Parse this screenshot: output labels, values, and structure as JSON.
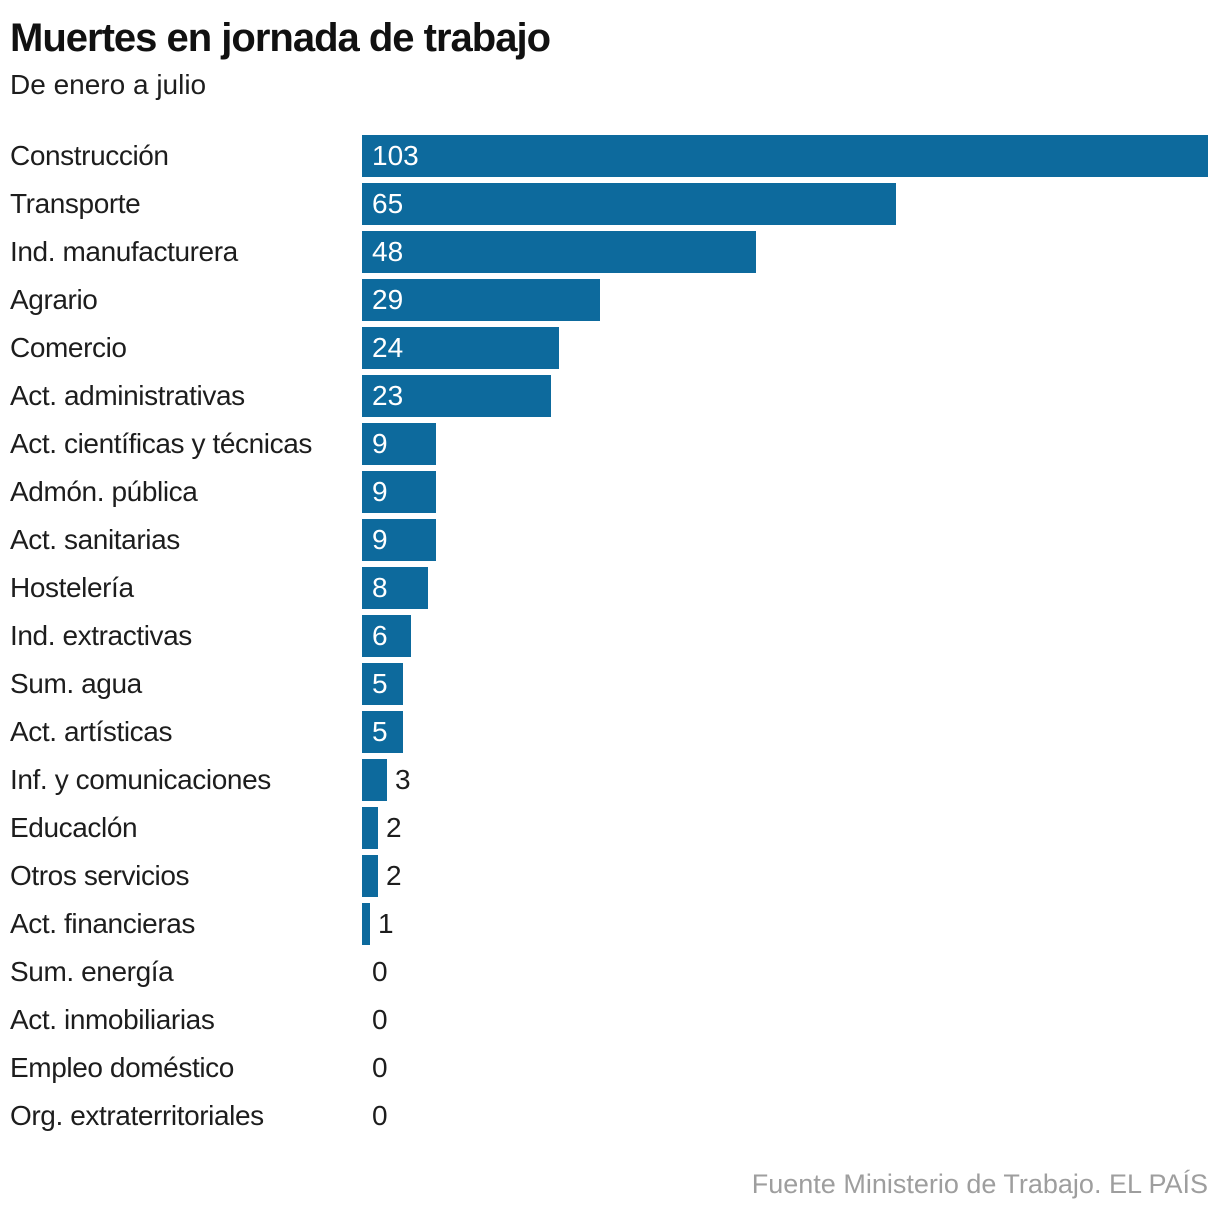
{
  "header": {
    "title": "Muertes en jornada de trabajo",
    "subtitle": "De enero a julio"
  },
  "footer": {
    "source": "Fuente Ministerio de Trabajo. EL PAÍS"
  },
  "colors": {
    "bar": "#0D6A9D",
    "category_text": "#1D1D1D",
    "value_inside": "#FFFFFF",
    "value_outside": "#1D1D1D",
    "title_text": "#111111",
    "source_text": "#9E9E9E",
    "background": "#FFFFFF"
  },
  "chart_data": {
    "type": "bar",
    "orientation": "horizontal",
    "title": "Muertes en jornada de trabajo",
    "subtitle": "De enero a julio",
    "source": "Fuente Ministerio de Trabajo. EL PAÍS",
    "xlabel": "",
    "ylabel": "",
    "xlim": [
      0,
      103
    ],
    "grid": false,
    "legend": false,
    "value_labels": true,
    "categories": [
      "Construcción",
      "Transporte",
      "Ind. manufacturera",
      "Agrario",
      "Comercio",
      "Act. administrativas",
      "Act. científicas y técnicas",
      "Admón. pública",
      "Act. sanitarias",
      "Hostelería",
      "Ind. extractivas",
      "Sum. agua",
      "Act. artísticas",
      "Inf. y comunicaciones",
      "Educaclón",
      "Otros servicios",
      "Act. financieras",
      "Sum. energía",
      "Act. inmobiliarias",
      "Empleo doméstico",
      "Org. extraterritoriales"
    ],
    "values": [
      103,
      65,
      48,
      29,
      24,
      23,
      9,
      9,
      9,
      8,
      6,
      5,
      5,
      3,
      2,
      2,
      1,
      0,
      0,
      0,
      0
    ]
  }
}
